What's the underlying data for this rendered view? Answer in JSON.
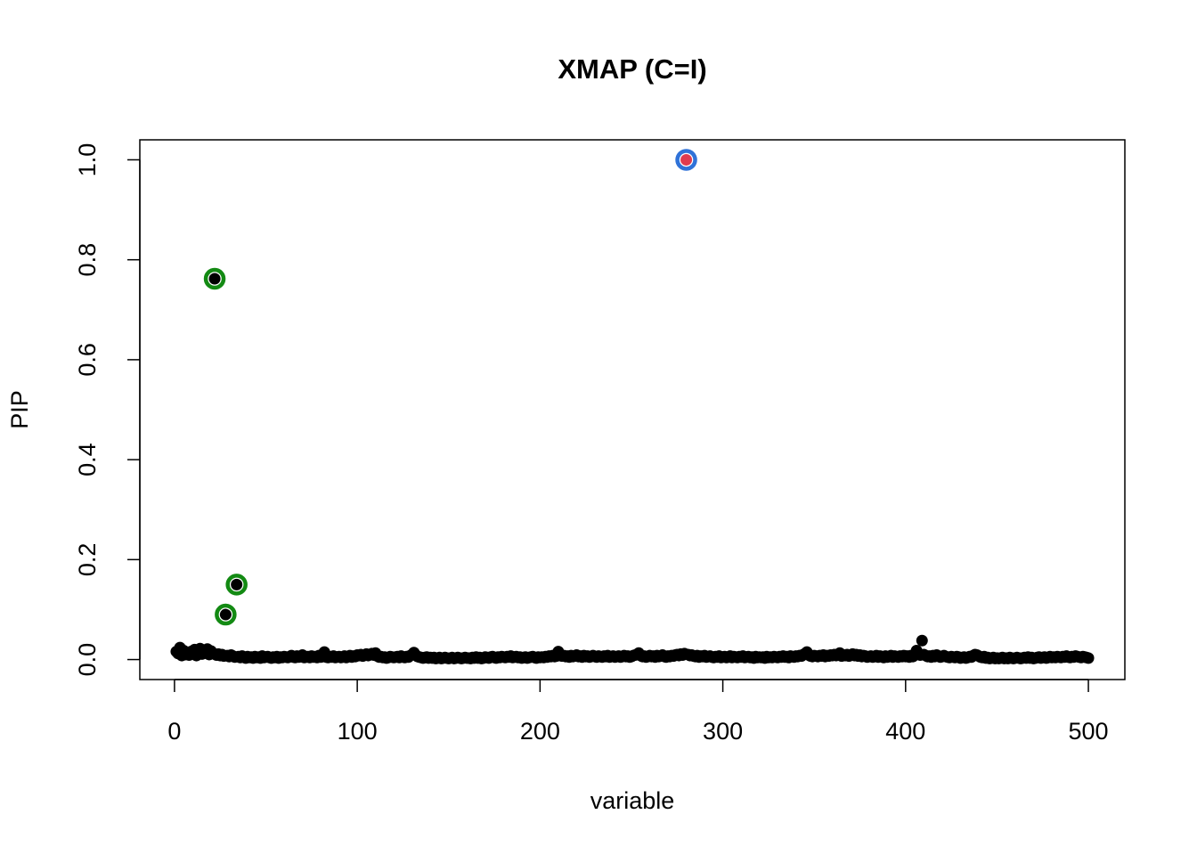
{
  "chart_data": {
    "type": "scatter",
    "title": "XMAP (C=I)",
    "xlabel": "variable",
    "ylabel": "PIP",
    "xlim": [
      -18.96,
      519.96
    ],
    "ylim": [
      -0.04,
      1.04
    ],
    "xticks": [
      0,
      100,
      200,
      300,
      400,
      500
    ],
    "yticks": [
      {
        "value": 0,
        "label": "0.0"
      },
      0.2,
      0.4,
      0.6,
      0.8,
      {
        "value": 1,
        "label": "1.0"
      }
    ],
    "series": [
      {
        "color": "#000000",
        "x": [
          1,
          2,
          3,
          4,
          5,
          6,
          7,
          8,
          9,
          10,
          11,
          12,
          13,
          14,
          15,
          16,
          17,
          18,
          19,
          20,
          21,
          22,
          23,
          24,
          25,
          26,
          27,
          28,
          29,
          30,
          31,
          32,
          33,
          34,
          35,
          36,
          37,
          38,
          39,
          40,
          41,
          42,
          43,
          44,
          45,
          46,
          47,
          48,
          49,
          50,
          51,
          52,
          53,
          54,
          55,
          56,
          57,
          58,
          59,
          60,
          61,
          62,
          63,
          64,
          65,
          66,
          67,
          68,
          69,
          70,
          71,
          72,
          73,
          74,
          75,
          76,
          77,
          78,
          79,
          80,
          81,
          82,
          83,
          84,
          85,
          86,
          87,
          88,
          89,
          90,
          91,
          92,
          93,
          94,
          95,
          96,
          97,
          98,
          99,
          100,
          101,
          102,
          103,
          104,
          105,
          106,
          107,
          108,
          109,
          110,
          111,
          112,
          113,
          114,
          115,
          116,
          117,
          118,
          119,
          120,
          121,
          122,
          123,
          124,
          125,
          126,
          127,
          128,
          129,
          130,
          131,
          132,
          133,
          134,
          135,
          136,
          137,
          138,
          139,
          140,
          141,
          142,
          143,
          144,
          145,
          146,
          147,
          148,
          149,
          150,
          151,
          152,
          153,
          154,
          155,
          156,
          157,
          158,
          159,
          160,
          161,
          162,
          163,
          164,
          165,
          166,
          167,
          168,
          169,
          170,
          171,
          172,
          173,
          174,
          175,
          176,
          177,
          178,
          179,
          180,
          181,
          182,
          183,
          184,
          185,
          186,
          187,
          188,
          189,
          190,
          191,
          192,
          193,
          194,
          195,
          196,
          197,
          198,
          199,
          200,
          201,
          202,
          203,
          204,
          205,
          206,
          207,
          208,
          209,
          210,
          211,
          212,
          213,
          214,
          215,
          216,
          217,
          218,
          219,
          220,
          221,
          222,
          223,
          224,
          225,
          226,
          227,
          228,
          229,
          230,
          231,
          232,
          233,
          234,
          235,
          236,
          237,
          238,
          239,
          240,
          241,
          242,
          243,
          244,
          245,
          246,
          247,
          248,
          249,
          250,
          251,
          252,
          253,
          254,
          255,
          256,
          257,
          258,
          259,
          260,
          261,
          262,
          263,
          264,
          265,
          266,
          267,
          268,
          269,
          270,
          271,
          272,
          273,
          274,
          275,
          276,
          277,
          278,
          279,
          280,
          281,
          282,
          283,
          284,
          285,
          286,
          287,
          288,
          289,
          290,
          291,
          292,
          293,
          294,
          295,
          296,
          297,
          298,
          299,
          300,
          301,
          302,
          303,
          304,
          305,
          306,
          307,
          308,
          309,
          310,
          311,
          312,
          313,
          314,
          315,
          316,
          317,
          318,
          319,
          320,
          321,
          322,
          323,
          324,
          325,
          326,
          327,
          328,
          329,
          330,
          331,
          332,
          333,
          334,
          335,
          336,
          337,
          338,
          339,
          340,
          341,
          342,
          343,
          344,
          345,
          346,
          347,
          348,
          349,
          350,
          351,
          352,
          353,
          354,
          355,
          356,
          357,
          358,
          359,
          360,
          361,
          362,
          363,
          364,
          365,
          366,
          367,
          368,
          369,
          370,
          371,
          372,
          373,
          374,
          375,
          376,
          377,
          378,
          379,
          380,
          381,
          382,
          383,
          384,
          385,
          386,
          387,
          388,
          389,
          390,
          391,
          392,
          393,
          394,
          395,
          396,
          397,
          398,
          399,
          400,
          401,
          402,
          403,
          404,
          405,
          406,
          407,
          408,
          409,
          410,
          411,
          412,
          413,
          414,
          415,
          416,
          417,
          418,
          419,
          420,
          421,
          422,
          423,
          424,
          425,
          426,
          427,
          428,
          429,
          430,
          431,
          432,
          433,
          434,
          435,
          436,
          437,
          438,
          439,
          440,
          441,
          442,
          443,
          444,
          445,
          446,
          447,
          448,
          449,
          450,
          451,
          452,
          453,
          454,
          455,
          456,
          457,
          458,
          459,
          460,
          461,
          462,
          463,
          464,
          465,
          466,
          467,
          468,
          469,
          470,
          471,
          472,
          473,
          474,
          475,
          476,
          477,
          478,
          479,
          480,
          481,
          482,
          483,
          484,
          485,
          486,
          487,
          488,
          489,
          490,
          491,
          492,
          493,
          494,
          495,
          496,
          497,
          498,
          499,
          500
        ],
        "values": [
          0.016,
          0.012,
          0.024,
          0.008,
          0.018,
          0.01,
          0.014,
          0.009,
          0.016,
          0.012,
          0.02,
          0.008,
          0.015,
          0.022,
          0.011,
          0.019,
          0.013,
          0.021,
          0.01,
          0.017,
          0.012,
          0.762,
          0.009,
          0.011,
          0.008,
          0.01,
          0.007,
          0.09,
          0.008,
          0.006,
          0.009,
          0.007,
          0.005,
          0.15,
          0.006,
          0.004,
          0.007,
          0.005,
          0.003,
          0.006,
          0.004,
          0.005,
          0.003,
          0.006,
          0.004,
          0.005,
          0.003,
          0.007,
          0.004,
          0.005,
          0.006,
          0.004,
          0.003,
          0.005,
          0.004,
          0.006,
          0.003,
          0.005,
          0.004,
          0.006,
          0.005,
          0.004,
          0.006,
          0.008,
          0.005,
          0.004,
          0.007,
          0.005,
          0.006,
          0.009,
          0.004,
          0.005,
          0.006,
          0.004,
          0.007,
          0.005,
          0.006,
          0.004,
          0.008,
          0.005,
          0.006,
          0.015,
          0.005,
          0.004,
          0.006,
          0.005,
          0.007,
          0.004,
          0.005,
          0.006,
          0.004,
          0.005,
          0.007,
          0.004,
          0.006,
          0.008,
          0.005,
          0.007,
          0.006,
          0.009,
          0.008,
          0.01,
          0.007,
          0.009,
          0.011,
          0.008,
          0.01,
          0.012,
          0.009,
          0.013,
          0.007,
          0.005,
          0.006,
          0.004,
          0.005,
          0.003,
          0.004,
          0.006,
          0.005,
          0.004,
          0.005,
          0.006,
          0.004,
          0.007,
          0.005,
          0.004,
          0.006,
          0.005,
          0.008,
          0.01,
          0.014,
          0.009,
          0.006,
          0.005,
          0.004,
          0.003,
          0.004,
          0.005,
          0.003,
          0.004,
          0.003,
          0.004,
          0.002,
          0.003,
          0.004,
          0.002,
          0.003,
          0.004,
          0.003,
          0.002,
          0.003,
          0.004,
          0.002,
          0.003,
          0.004,
          0.003,
          0.002,
          0.003,
          0.004,
          0.003,
          0.003,
          0.002,
          0.004,
          0.003,
          0.005,
          0.003,
          0.004,
          0.002,
          0.003,
          0.005,
          0.004,
          0.003,
          0.005,
          0.006,
          0.004,
          0.003,
          0.005,
          0.004,
          0.006,
          0.005,
          0.004,
          0.006,
          0.005,
          0.007,
          0.004,
          0.005,
          0.006,
          0.004,
          0.005,
          0.003,
          0.004,
          0.005,
          0.003,
          0.004,
          0.005,
          0.006,
          0.004,
          0.003,
          0.005,
          0.004,
          0.005,
          0.004,
          0.006,
          0.005,
          0.007,
          0.006,
          0.008,
          0.006,
          0.007,
          0.016,
          0.009,
          0.007,
          0.008,
          0.006,
          0.007,
          0.005,
          0.008,
          0.006,
          0.007,
          0.009,
          0.006,
          0.007,
          0.005,
          0.008,
          0.006,
          0.007,
          0.005,
          0.006,
          0.008,
          0.006,
          0.005,
          0.007,
          0.006,
          0.005,
          0.007,
          0.006,
          0.008,
          0.005,
          0.006,
          0.007,
          0.005,
          0.006,
          0.007,
          0.005,
          0.006,
          0.008,
          0.006,
          0.007,
          0.005,
          0.006,
          0.008,
          0.009,
          0.01,
          0.013,
          0.008,
          0.006,
          0.007,
          0.005,
          0.006,
          0.008,
          0.006,
          0.007,
          0.005,
          0.008,
          0.006,
          0.007,
          0.009,
          0.006,
          0.005,
          0.007,
          0.006,
          0.008,
          0.007,
          0.009,
          0.01,
          0.008,
          0.011,
          0.009,
          0.012,
          1,
          0.01,
          0.008,
          0.009,
          0.007,
          0.006,
          0.008,
          0.005,
          0.007,
          0.006,
          0.008,
          0.005,
          0.006,
          0.007,
          0.005,
          0.004,
          0.006,
          0.005,
          0.007,
          0.004,
          0.005,
          0.006,
          0.004,
          0.005,
          0.007,
          0.004,
          0.006,
          0.005,
          0.004,
          0.006,
          0.005,
          0.007,
          0.004,
          0.005,
          0.006,
          0.004,
          0.005,
          0.003,
          0.006,
          0.004,
          0.005,
          0.004,
          0.005,
          0.003,
          0.006,
          0.004,
          0.005,
          0.004,
          0.006,
          0.005,
          0.004,
          0.006,
          0.005,
          0.007,
          0.005,
          0.006,
          0.004,
          0.007,
          0.006,
          0.005,
          0.007,
          0.006,
          0.008,
          0.007,
          0.01,
          0.012,
          0.015,
          0.009,
          0.007,
          0.006,
          0.008,
          0.007,
          0.006,
          0.008,
          0.007,
          0.009,
          0.006,
          0.008,
          0.007,
          0.009,
          0.008,
          0.01,
          0.008,
          0.009,
          0.013,
          0.007,
          0.009,
          0.008,
          0.01,
          0.007,
          0.009,
          0.011,
          0.008,
          0.01,
          0.007,
          0.009,
          0.006,
          0.008,
          0.007,
          0.005,
          0.006,
          0.007,
          0.005,
          0.006,
          0.008,
          0.005,
          0.007,
          0.006,
          0.004,
          0.007,
          0.005,
          0.006,
          0.008,
          0.005,
          0.007,
          0.006,
          0.005,
          0.007,
          0.006,
          0.008,
          0.006,
          0.007,
          0.005,
          0.008,
          0.006,
          0.01,
          0.018,
          0.012,
          0.009,
          0.038,
          0.01,
          0.008,
          0.006,
          0.007,
          0.005,
          0.008,
          0.006,
          0.009,
          0.007,
          0.005,
          0.006,
          0.008,
          0.006,
          0.005,
          0.004,
          0.006,
          0.005,
          0.004,
          0.006,
          0.005,
          0.003,
          0.004,
          0.005,
          0.003,
          0.004,
          0.006,
          0.005,
          0.008,
          0.01,
          0.009,
          0.007,
          0.005,
          0.004,
          0.006,
          0.003,
          0.004,
          0.002,
          0.003,
          0.004,
          0.002,
          0.003,
          0.002,
          0.003,
          0.004,
          0.002,
          0.003,
          0.002,
          0.004,
          0.003,
          0.002,
          0.003,
          0.004,
          0.003,
          0.002,
          0.003,
          0.004,
          0.003,
          0.005,
          0.003,
          0.004,
          0.002,
          0.003,
          0.004,
          0.005,
          0.003,
          0.004,
          0.005,
          0.003,
          0.004,
          0.006,
          0.004,
          0.005,
          0.004,
          0.006,
          0.005,
          0.004,
          0.006,
          0.005,
          0.007,
          0.005,
          0.004,
          0.006,
          0.005,
          0.007,
          0.006,
          0.005,
          0.004,
          0.006,
          0.005,
          0.004,
          0.003
        ]
      }
    ],
    "rings": [
      {
        "color": "#138a13",
        "point_color": "#000000",
        "x": [
          22,
          28,
          34
        ],
        "values": [
          0.762,
          0.09,
          0.15
        ]
      },
      {
        "color": "#2f72d8",
        "point_color": "#df3b4f",
        "x": [
          280
        ],
        "values": [
          1
        ]
      }
    ]
  }
}
